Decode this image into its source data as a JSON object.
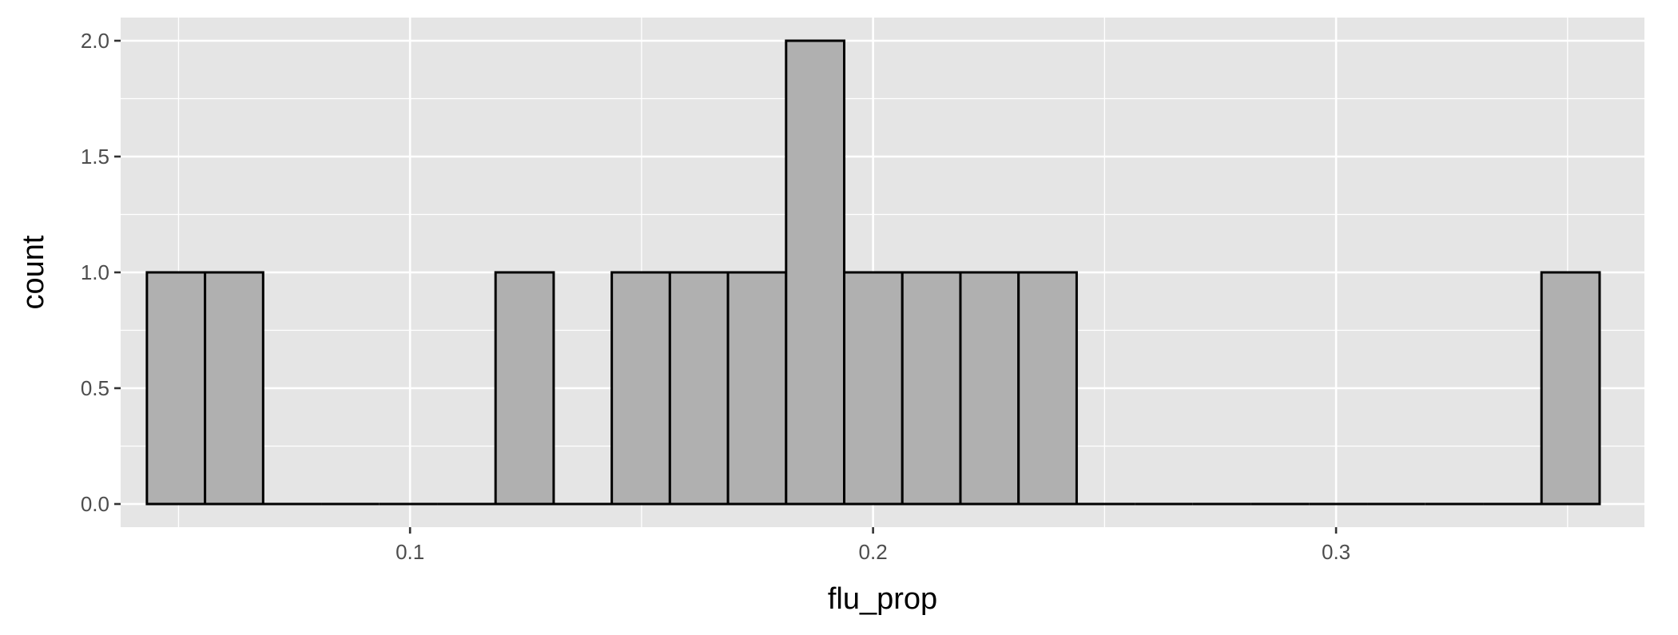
{
  "chart_data": {
    "type": "bar",
    "subtype": "histogram",
    "xlabel": "flu_prop",
    "ylabel": "count",
    "xlim": [
      0.0375,
      0.3666
    ],
    "ylim": [
      -0.1,
      2.1
    ],
    "x_ticks": [
      0.1,
      0.2,
      0.3
    ],
    "x_tick_labels": [
      "0.1",
      "0.2",
      "0.3"
    ],
    "y_ticks": [
      0.0,
      0.5,
      1.0,
      1.5,
      2.0
    ],
    "y_tick_labels": [
      "0.0",
      "0.5",
      "1.0",
      "1.5",
      "2.0"
    ],
    "grid": true,
    "bin_width": 0.01255,
    "bins": [
      {
        "x0": 0.04317,
        "x1": 0.05572,
        "count": 1
      },
      {
        "x0": 0.05572,
        "x1": 0.06827,
        "count": 1
      },
      {
        "x0": 0.06827,
        "x1": 0.08082,
        "count": 0
      },
      {
        "x0": 0.08082,
        "x1": 0.09337,
        "count": 0
      },
      {
        "x0": 0.09337,
        "x1": 0.10592,
        "count": 0
      },
      {
        "x0": 0.10592,
        "x1": 0.11847,
        "count": 0
      },
      {
        "x0": 0.11847,
        "x1": 0.13102,
        "count": 1
      },
      {
        "x0": 0.13102,
        "x1": 0.14357,
        "count": 0
      },
      {
        "x0": 0.14357,
        "x1": 0.15612,
        "count": 1
      },
      {
        "x0": 0.15612,
        "x1": 0.16867,
        "count": 1
      },
      {
        "x0": 0.16867,
        "x1": 0.18122,
        "count": 1
      },
      {
        "x0": 0.18122,
        "x1": 0.19377,
        "count": 2
      },
      {
        "x0": 0.19377,
        "x1": 0.20632,
        "count": 1
      },
      {
        "x0": 0.20632,
        "x1": 0.21887,
        "count": 1
      },
      {
        "x0": 0.21887,
        "x1": 0.23142,
        "count": 1
      },
      {
        "x0": 0.23142,
        "x1": 0.24397,
        "count": 1
      },
      {
        "x0": 0.24397,
        "x1": 0.25652,
        "count": 0
      },
      {
        "x0": 0.25652,
        "x1": 0.26907,
        "count": 0
      },
      {
        "x0": 0.26907,
        "x1": 0.28162,
        "count": 0
      },
      {
        "x0": 0.28162,
        "x1": 0.29417,
        "count": 0
      },
      {
        "x0": 0.29417,
        "x1": 0.30672,
        "count": 0
      },
      {
        "x0": 0.30672,
        "x1": 0.31927,
        "count": 0
      },
      {
        "x0": 0.31927,
        "x1": 0.33182,
        "count": 0
      },
      {
        "x0": 0.33182,
        "x1": 0.34437,
        "count": 0
      },
      {
        "x0": 0.34437,
        "x1": 0.35692,
        "count": 1
      }
    ],
    "colors": {
      "panel_background": "#e5e5e5",
      "grid_line": "#ffffff",
      "bar_fill": "#b0b0b0",
      "bar_outline": "#000000"
    }
  }
}
